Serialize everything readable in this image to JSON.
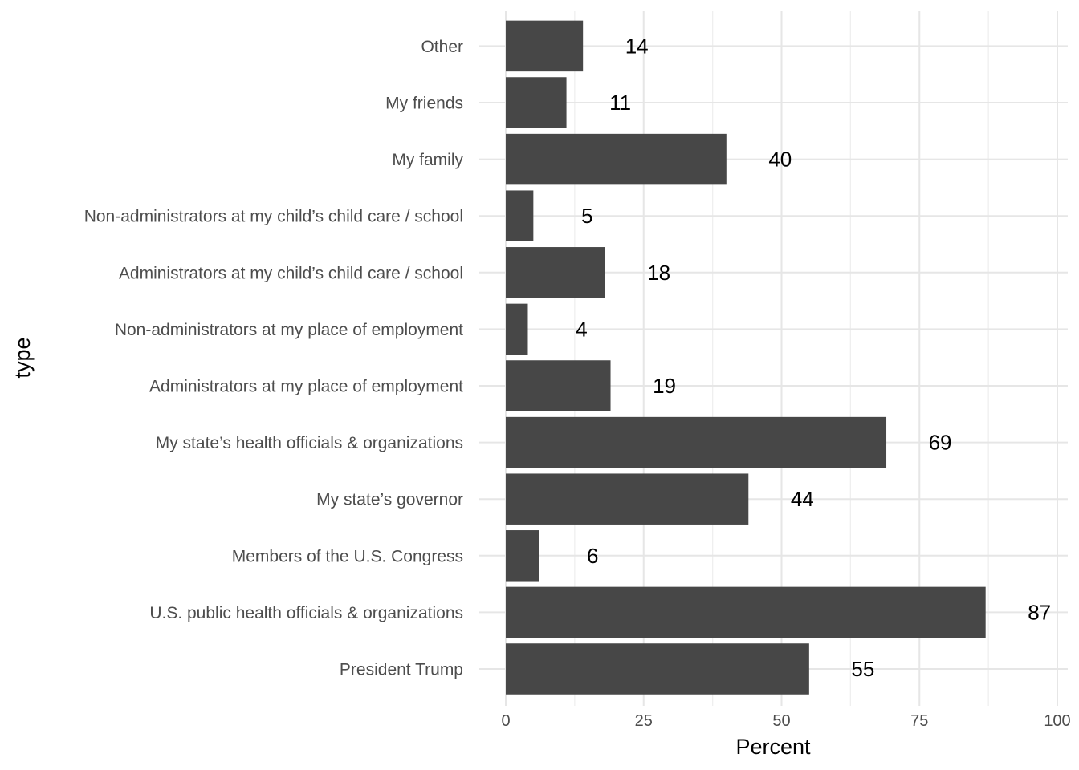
{
  "chart_data": {
    "type": "bar",
    "orientation": "horizontal",
    "categories": [
      "President Trump",
      "U.S. public health officials & organizations",
      "Members of the U.S. Congress",
      "My state’s governor",
      "My state’s health officials & organizations",
      "Administrators at my place of employment",
      "Non-administrators at my place of employment",
      "Administrators at my child’s child care / school",
      "Non-administrators at my child’s child care / school",
      "My family",
      "My friends",
      "Other"
    ],
    "values": [
      55,
      87,
      6,
      44,
      69,
      19,
      4,
      18,
      5,
      40,
      11,
      14
    ],
    "data_labels": [
      "55",
      "87",
      "6",
      "44",
      "69",
      "19",
      "4",
      "18",
      "5",
      "40",
      "11",
      "14"
    ],
    "xlabel": "Percent",
    "ylabel": "type",
    "xlim": [
      0,
      100
    ],
    "x_ticks": [
      0,
      25,
      50,
      75,
      100
    ],
    "x_tick_labels": [
      "0",
      "25",
      "50",
      "75",
      "100"
    ],
    "grid": true,
    "legend": "none",
    "bar_color": "#474747"
  }
}
